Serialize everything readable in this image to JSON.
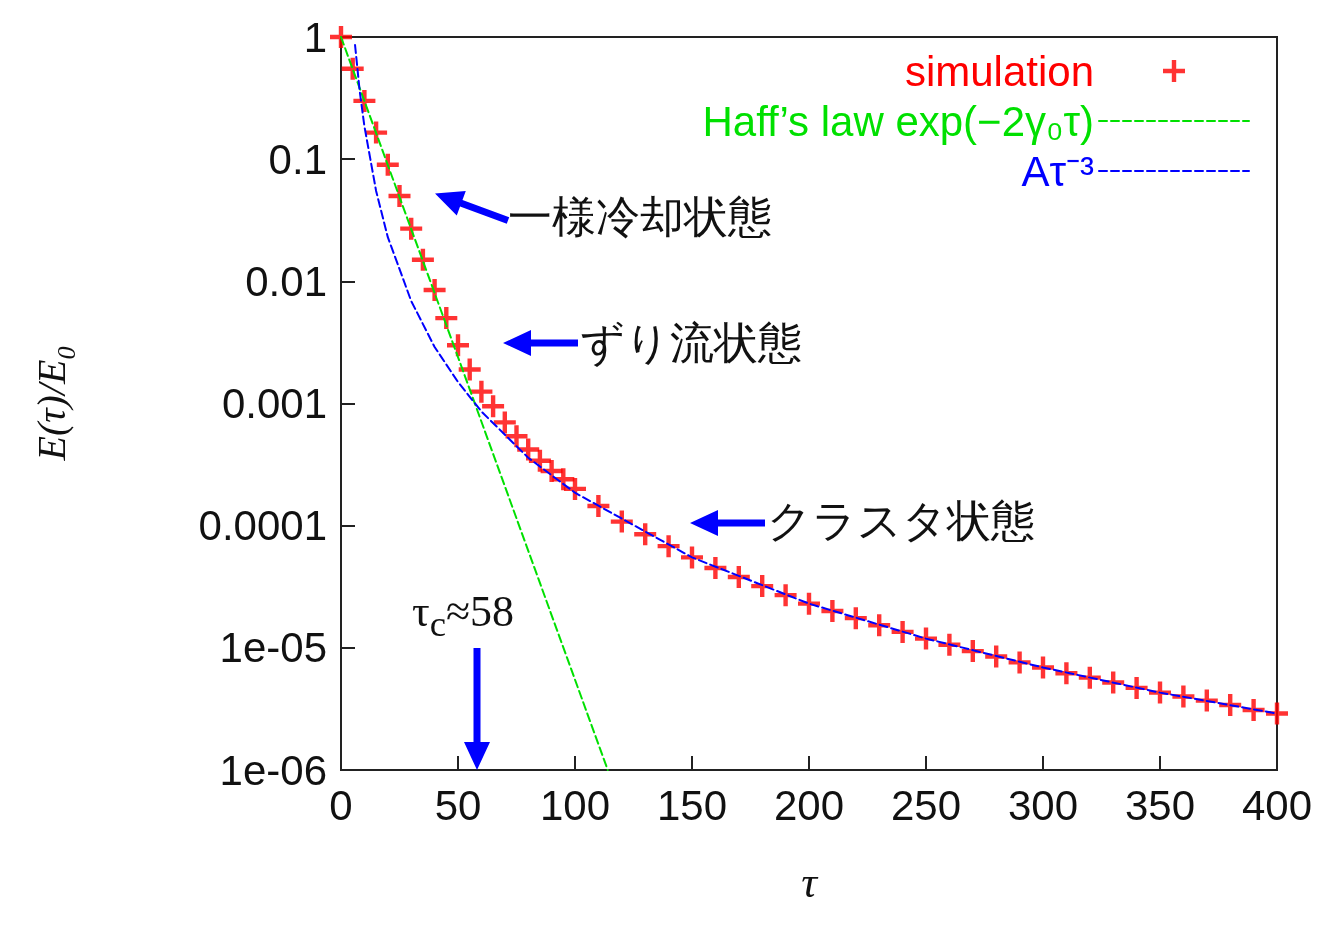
{
  "chart_data": {
    "type": "scatter",
    "xlabel": "τ",
    "ylabel": "E(τ)/E$_{0}$",
    "log": "y",
    "grid": false,
    "legend": "top right",
    "xlim": [
      0,
      400
    ],
    "xticks": [
      0,
      50,
      100,
      150,
      200,
      250,
      300,
      350,
      400
    ],
    "ylim": [
      1e-06,
      1
    ],
    "yticks": [
      1,
      0.1,
      0.01,
      0.001,
      0.0001,
      {
        "value": 1e-05,
        "label": "1e-05"
      },
      {
        "value": 1e-06,
        "label": "1e-06"
      }
    ],
    "series": [
      {
        "name": "simulation",
        "marker": "cross",
        "color": "#ff0000",
        "x": [
          0,
          5,
          10,
          15,
          20,
          25,
          30,
          35,
          40,
          45,
          50,
          55,
          60,
          65,
          70,
          75,
          80,
          85,
          90,
          95,
          100,
          110,
          120,
          130,
          140,
          150,
          160,
          170,
          180,
          190,
          200,
          210,
          220,
          230,
          240,
          250,
          260,
          270,
          280,
          290,
          300,
          310,
          320,
          330,
          340,
          350,
          360,
          370,
          380,
          390,
          400
        ],
        "values": [
          1,
          0.55,
          0.3,
          0.165,
          0.09,
          0.05,
          0.027,
          0.015,
          0.0085,
          0.005,
          0.003,
          0.0019,
          0.00125,
          0.00095,
          0.0007,
          0.00054,
          0.00042,
          0.00034,
          0.00028,
          0.00024,
          0.0002,
          0.000145,
          0.000108,
          8.5e-05,
          6.8e-05,
          5.5e-05,
          4.5e-05,
          3.8e-05,
          3.2e-05,
          2.7e-05,
          2.3e-05,
          2e-05,
          1.75e-05,
          1.53e-05,
          1.35e-05,
          1.19e-05,
          1.06e-05,
          9.4e-06,
          8.5e-06,
          7.6e-06,
          6.9e-06,
          6.2e-06,
          5.7e-06,
          5.2e-06,
          4.7e-06,
          4.3e-06,
          4e-06,
          3.7e-06,
          3.4e-06,
          3.1e-06,
          2.9e-06
        ]
      },
      {
        "name": "Haff’s law exp(−2γ₀τ)",
        "type": "line",
        "marker": "none",
        "line_style": "dashed",
        "color": "#00e000",
        "x": [
          0,
          50,
          114
        ],
        "values": [
          1,
          0.0024,
          1e-06
        ]
      },
      {
        "name": "Aτ⁻³",
        "type": "line",
        "marker": "none",
        "line_style": "dashed",
        "color": "#0000ff",
        "x": [
          6,
          8,
          10,
          15,
          20,
          30,
          40,
          50,
          60,
          80,
          100,
          150,
          200,
          250,
          300,
          350,
          400
        ],
        "values": [
          0.86,
          0.36,
          0.186,
          0.055,
          0.023,
          0.0069,
          0.0029,
          0.0015,
          0.00086,
          0.00036,
          0.000186,
          5.5e-05,
          2.3e-05,
          1.19e-05,
          6.9e-06,
          4.3e-06,
          2.9e-06
        ]
      }
    ],
    "annotations": [
      "一様冷却状態",
      "ずり流状態",
      "クラスタ状態",
      "τ$_{c}$≈58"
    ]
  }
}
